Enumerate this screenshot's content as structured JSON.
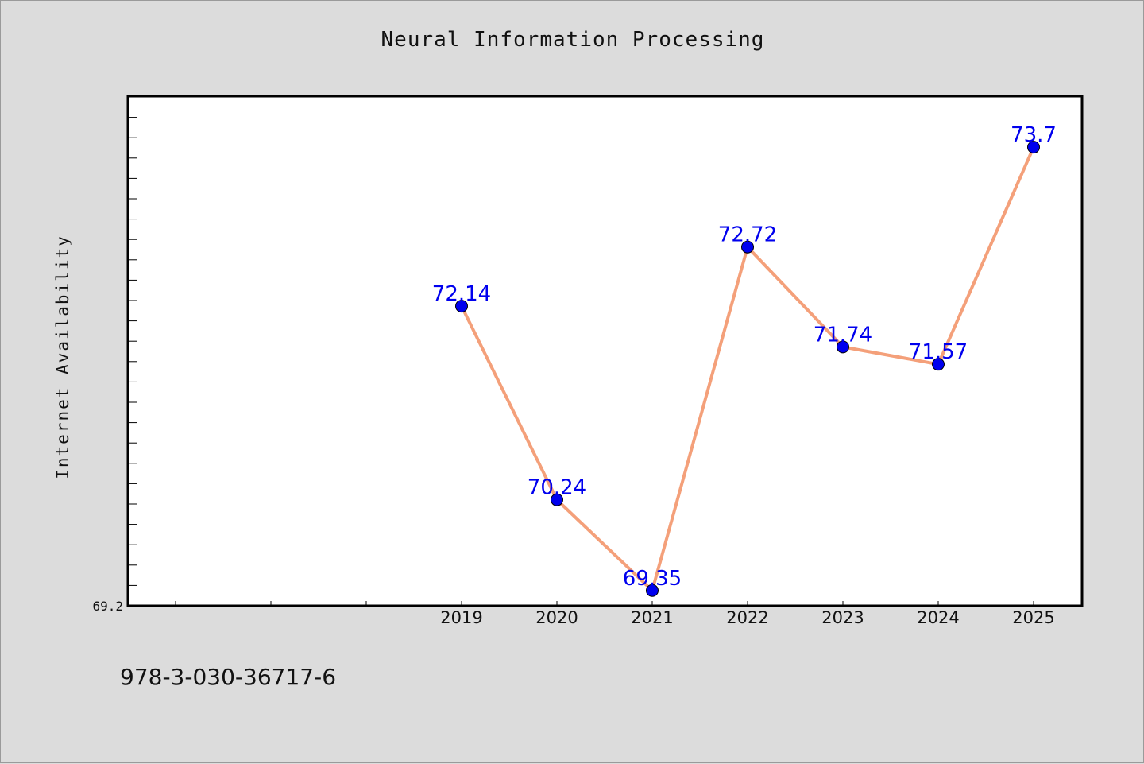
{
  "title": "Neural Information Processing",
  "footer_text": "978-3-030-36717-6",
  "chart_data": {
    "type": "line",
    "title": "Neural Information Processing",
    "xlabel": "",
    "ylabel": "Internet Availability",
    "x": [
      "2019",
      "2020",
      "2021",
      "2022",
      "2023",
      "2024",
      "2025"
    ],
    "y_tick_labels": [
      "69.2"
    ],
    "ylim": [
      69.2,
      74.2
    ],
    "series": [
      {
        "values": [
          72.14,
          70.24,
          69.35,
          72.72,
          71.74,
          71.57,
          73.7
        ],
        "labels": [
          "72.14",
          "70.24",
          "69.35",
          "72.72",
          "71.74",
          "71.57",
          "73.7"
        ],
        "line_color": "#f4a07a",
        "marker_color": "#0000ee"
      }
    ],
    "grid": false,
    "legend": "none"
  }
}
